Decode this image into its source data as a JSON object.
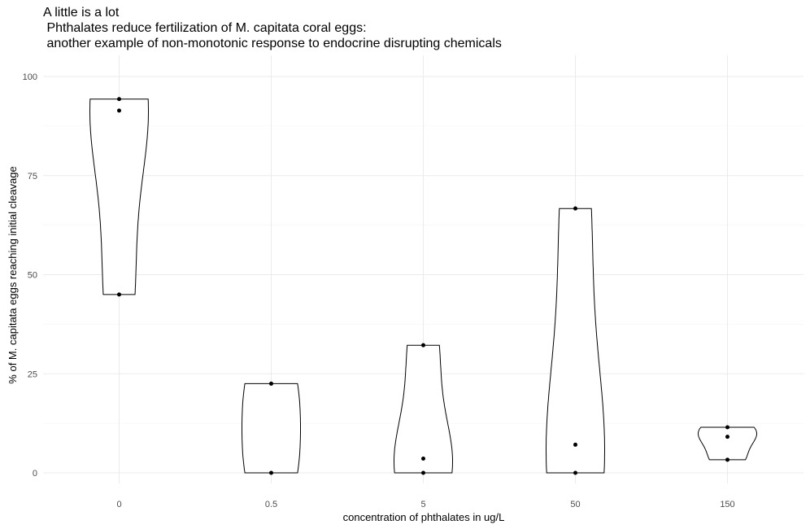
{
  "chart_data": {
    "type": "violin",
    "title_lines": [
      "A little is a lot",
      " Phthalates reduce fertilization of M. capitata coral eggs:",
      " another example of non-monotonic response to endocrine disrupting chemicals"
    ],
    "xlabel": "concentration of phthalates in ug/L",
    "ylabel": "% of M. capitata eggs reaching initial cleavage",
    "categories": [
      "0",
      "0.5",
      "5",
      "50",
      "150"
    ],
    "yticks": [
      0,
      25,
      50,
      75,
      100
    ],
    "ylim": [
      -2.5,
      105
    ],
    "grid": true,
    "points": [
      {
        "category": "0",
        "values": [
          94.3,
          91.4,
          45
        ]
      },
      {
        "category": "0.5",
        "values": [
          22.5,
          0
        ]
      },
      {
        "category": "5",
        "values": [
          32.2,
          3.6,
          0
        ]
      },
      {
        "category": "50",
        "values": [
          66.7,
          7.1,
          0
        ]
      },
      {
        "category": "150",
        "values": [
          11.5,
          9.1,
          3.3
        ]
      }
    ]
  }
}
